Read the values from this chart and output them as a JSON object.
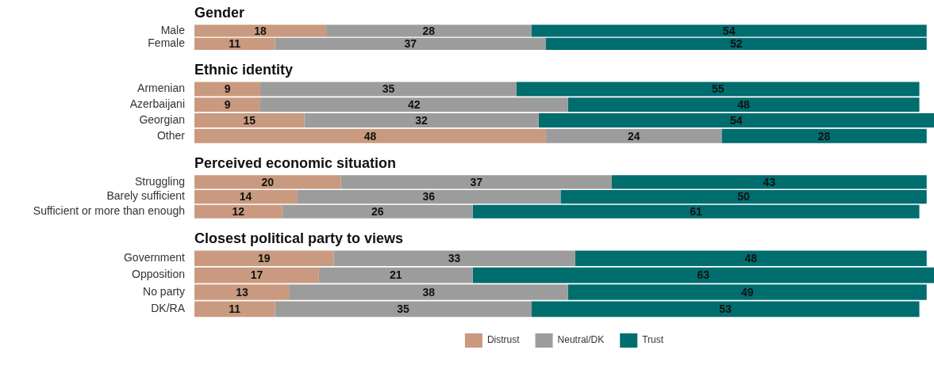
{
  "chart_data": [
    {
      "type": "bar",
      "orientation": "horizontal",
      "stacked": true,
      "data_labels": true,
      "title": "Gender",
      "categories": [
        "Male",
        "Female"
      ],
      "series": [
        {
          "color": "#c99a7f",
          "values": [
            18,
            11
          ]
        },
        {
          "color": "#9c9c9c",
          "values": [
            28,
            37
          ]
        },
        {
          "color": "#006d6f",
          "values": [
            54,
            52
          ]
        }
      ]
    },
    {
      "type": "bar",
      "orientation": "horizontal",
      "stacked": true,
      "data_labels": true,
      "title": "Ethnic identity",
      "categories": [
        "Armenian",
        "Azerbaijani",
        "Georgian",
        "Other"
      ],
      "series": [
        {
          "color": "#c99a7f",
          "values": [
            9,
            9,
            15,
            48
          ]
        },
        {
          "color": "#9c9c9c",
          "values": [
            35,
            42,
            32,
            24
          ]
        },
        {
          "color": "#006d6f",
          "values": [
            55,
            48,
            54,
            28
          ]
        }
      ]
    },
    {
      "type": "bar",
      "orientation": "horizontal",
      "stacked": true,
      "data_labels": true,
      "title": "Perceived economic situation",
      "categories": [
        "Struggling",
        "Barely sufficient",
        "Sufficient or more than enough"
      ],
      "series": [
        {
          "color": "#c99a7f",
          "values": [
            20,
            14,
            12
          ]
        },
        {
          "color": "#9c9c9c",
          "values": [
            37,
            36,
            26
          ]
        },
        {
          "color": "#006d6f",
          "values": [
            43,
            50,
            61
          ]
        }
      ]
    },
    {
      "type": "bar",
      "orientation": "horizontal",
      "stacked": true,
      "data_labels": true,
      "title": "Closest political party to views",
      "categories": [
        "Government",
        "Opposition",
        "No party",
        "DK/RA"
      ],
      "series": [
        {
          "name": "Distrust",
          "color": "#c99a7f",
          "values": [
            19,
            17,
            13,
            11
          ]
        },
        {
          "name": "Neutral/DK",
          "color": "#9c9c9c",
          "values": [
            33,
            21,
            38,
            35
          ]
        },
        {
          "name": "Trust",
          "color": "#006d6f",
          "values": [
            48,
            63,
            49,
            53
          ]
        }
      ],
      "legend": "bottom"
    }
  ]
}
